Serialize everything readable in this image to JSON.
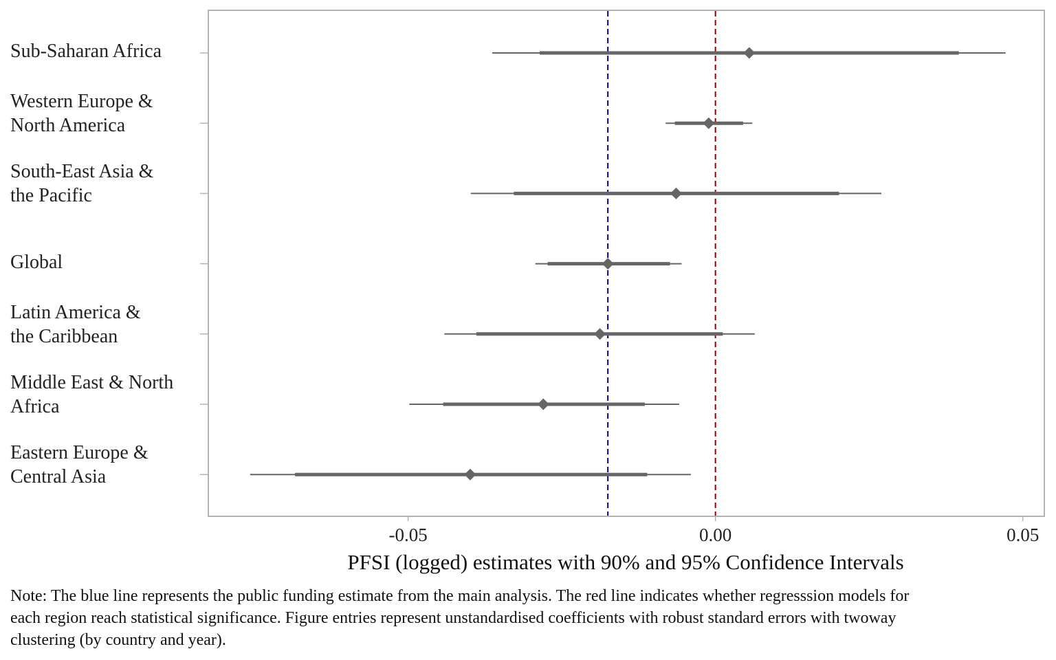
{
  "chart_data": {
    "type": "coefficient-plot",
    "xlabel": "PFSI (logged) estimates with 90% and 95% Confidence Intervals",
    "xlim": [
      -0.0825,
      0.0535
    ],
    "x_ticks": [
      {
        "value": -0.05,
        "label": "-0.05"
      },
      {
        "value": 0.0,
        "label": "0.00"
      },
      {
        "value": 0.05,
        "label": "0.05"
      }
    ],
    "reference_lines": [
      {
        "value": -0.0175,
        "color": "#00007a",
        "style": "dashed"
      },
      {
        "value": 0.0,
        "color": "#8b0000",
        "style": "dashed"
      }
    ],
    "marker_color": "#666666",
    "estimates": [
      {
        "label": "Sub-Saharan Africa",
        "estimate": 0.0055,
        "ci90": [
          -0.0286,
          0.0396
        ],
        "ci95": [
          -0.0363,
          0.0472
        ]
      },
      {
        "label": "Western Europe &\nNorth America",
        "estimate": -0.0011,
        "ci90": [
          -0.0066,
          0.0045
        ],
        "ci95": [
          -0.0081,
          0.006
        ]
      },
      {
        "label": "South-East Asia &\nthe Pacific",
        "estimate": -0.0064,
        "ci90": [
          -0.0328,
          0.0201
        ],
        "ci95": [
          -0.0398,
          0.027
        ]
      },
      {
        "label": "Global",
        "estimate": -0.0175,
        "ci90": [
          -0.0273,
          -0.0074
        ],
        "ci95": [
          -0.0293,
          -0.0055
        ]
      },
      {
        "label": "Latin America &\nthe Caribbean",
        "estimate": -0.0188,
        "ci90": [
          -0.0389,
          0.0012
        ],
        "ci95": [
          -0.0441,
          0.0064
        ]
      },
      {
        "label": "Middle East & North\nAfrica",
        "estimate": -0.028,
        "ci90": [
          -0.0443,
          -0.0115
        ],
        "ci95": [
          -0.0498,
          -0.0059
        ]
      },
      {
        "label": "Eastern Europe &\nCentral Asia",
        "estimate": -0.0399,
        "ci90": [
          -0.0684,
          -0.0111
        ],
        "ci95": [
          -0.0757,
          -0.004
        ]
      }
    ]
  },
  "note": "Note: The blue line represents the public funding estimate from the main analysis. The red line indicates whether regresssion models for each region reach statistical significance. Figure entries represent unstandardised coefficients with robust standard errors with twoway clustering (by country and year)."
}
